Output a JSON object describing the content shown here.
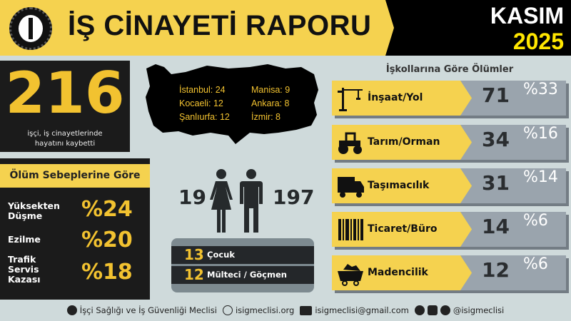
{
  "header": {
    "title": "İŞ CİNAYETİ RAPORU",
    "month": "KASIM",
    "year": "2025",
    "logo": "isig-meclisi-logo"
  },
  "total": {
    "value": "216",
    "caption_line1": "işçi, iş cinayetlerinde",
    "caption_line2": "hayatını kaybetti"
  },
  "causes": {
    "title": "Ölüm Sebeplerine Göre",
    "items": [
      {
        "label_lines": [
          "Yüksekten",
          "Düşme"
        ],
        "percent": "%24"
      },
      {
        "label_lines": [
          "Ezilme"
        ],
        "percent": "%20"
      },
      {
        "label_lines": [
          "Trafik",
          "Servis",
          "Kazası"
        ],
        "percent": "%18"
      }
    ]
  },
  "cities": [
    {
      "text": "İstanbul: 24"
    },
    {
      "text": "Kocaeli: 12"
    },
    {
      "text": "Şanlıurfa: 12"
    },
    {
      "text": "Manisa: 9"
    },
    {
      "text": "Ankara: 8"
    },
    {
      "text": "İzmir: 8"
    }
  ],
  "gender": {
    "female": "19",
    "male": "197"
  },
  "special": [
    {
      "count": "13",
      "label": "Çocuk"
    },
    {
      "count": "12",
      "label": "Mülteci / Göçmen"
    }
  ],
  "sectors": {
    "title": "İşkollarına Göre Ölümler",
    "items": [
      {
        "label": "İnşaat/Yol",
        "count": "71",
        "percent": "%33",
        "icon": "crane-icon"
      },
      {
        "label": "Tarım/Orman",
        "count": "34",
        "percent": "%16",
        "icon": "tractor-icon"
      },
      {
        "label": "Taşımacılık",
        "count": "31",
        "percent": "%14",
        "icon": "truck-icon"
      },
      {
        "label": "Ticaret/Büro",
        "count": "14",
        "percent": "%6",
        "icon": "barcode-icon"
      },
      {
        "label": "Madencilik",
        "count": "12",
        "percent": "%6",
        "icon": "mine-cart-icon"
      }
    ]
  },
  "footer": {
    "org": "İşçi Sağlığı ve İş Güvenliği Meclisi",
    "website": "isigmeclisi.org",
    "email": "isigmeclisi@gmail.com",
    "social": "@isigmeclisi"
  },
  "colors": {
    "yellow": "#f5d24f",
    "accent_yellow": "#f2c230",
    "dark": "#1b1b1b",
    "background": "#cfdadb",
    "gray": "#9aa4ad"
  }
}
